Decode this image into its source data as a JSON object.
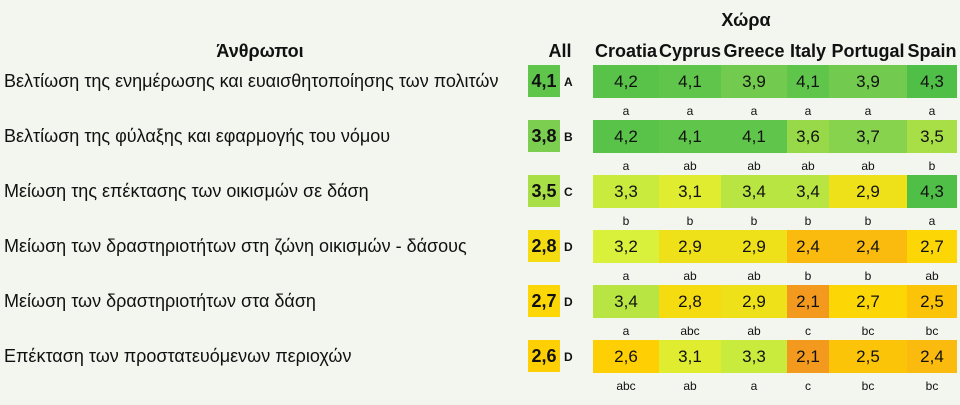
{
  "chart_data": {
    "type": "table",
    "title": "Άνθρωποι",
    "group_header": "Χώρα",
    "all_header": "All",
    "countries": [
      "Croatia",
      "Cyprus",
      "Greece",
      "Italy",
      "Portugal",
      "Spain"
    ],
    "rows": [
      {
        "label": "Βελτίωση της ενημέρωσης και ευαισθητοποίησης των πολιτών",
        "all": "4,1",
        "all_group": "A",
        "values": [
          "4,2",
          "4,1",
          "3,9",
          "4,1",
          "3,9",
          "4,3"
        ],
        "letters": [
          "a",
          "a",
          "a",
          "a",
          "a",
          "a"
        ]
      },
      {
        "label": "Βελτίωση της φύλαξης και εφαρμογής του νόμου",
        "all": "3,8",
        "all_group": "B",
        "values": [
          "4,2",
          "4,1",
          "4,1",
          "3,6",
          "3,7",
          "3,5"
        ],
        "letters": [
          "a",
          "ab",
          "ab",
          "ab",
          "ab",
          "b"
        ]
      },
      {
        "label": "Μείωση της επέκτασης των οικισμών σε δάση",
        "all": "3,5",
        "all_group": "C",
        "values": [
          "3,3",
          "3,1",
          "3,4",
          "3,4",
          "2,9",
          "4,3"
        ],
        "letters": [
          "b",
          "b",
          "b",
          "b",
          "b",
          "a"
        ]
      },
      {
        "label": "Μείωση των δραστηριοτήτων στη ζώνη οικισμών - δάσους",
        "all": "2,8",
        "all_group": "D",
        "values": [
          "3,2",
          "2,9",
          "2,9",
          "2,4",
          "2,4",
          "2,7"
        ],
        "letters": [
          "a",
          "ab",
          "ab",
          "b",
          "b",
          "ab"
        ]
      },
      {
        "label": "Μείωση των δραστηριοτήτων στα δάση",
        "all": "2,7",
        "all_group": "D",
        "values": [
          "3,4",
          "2,8",
          "2,9",
          "2,1",
          "2,7",
          "2,5"
        ],
        "letters": [
          "a",
          "abc",
          "ab",
          "c",
          "bc",
          "bc"
        ]
      },
      {
        "label": "Επέκταση των προστατευόμενων περιοχών",
        "all": "2,6",
        "all_group": "D",
        "values": [
          "2,6",
          "3,1",
          "3,3",
          "2,1",
          "2,5",
          "2,4"
        ],
        "letters": [
          "abc",
          "ab",
          "a",
          "c",
          "bc",
          "bc"
        ]
      }
    ],
    "color_scale": {
      "min": 2.1,
      "max": 4.3,
      "stops": [
        "#f39a1e",
        "#ffd400",
        "#d9f13a",
        "#7fd050",
        "#4fbf48"
      ]
    }
  }
}
